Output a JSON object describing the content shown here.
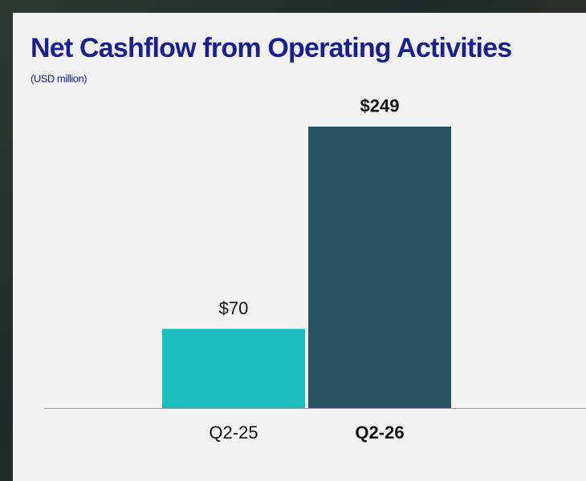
{
  "chart_data": {
    "type": "bar",
    "title": "Net Cashflow from Operating Activities",
    "subtitle": "(USD million)",
    "categories": [
      "Q2-25",
      "Q2-26"
    ],
    "values": [
      70,
      249
    ],
    "value_labels": [
      "$70",
      "$249"
    ],
    "colors": [
      "#1bbfbf",
      "#275065"
    ],
    "highlight_index": 1,
    "grid": false
  }
}
